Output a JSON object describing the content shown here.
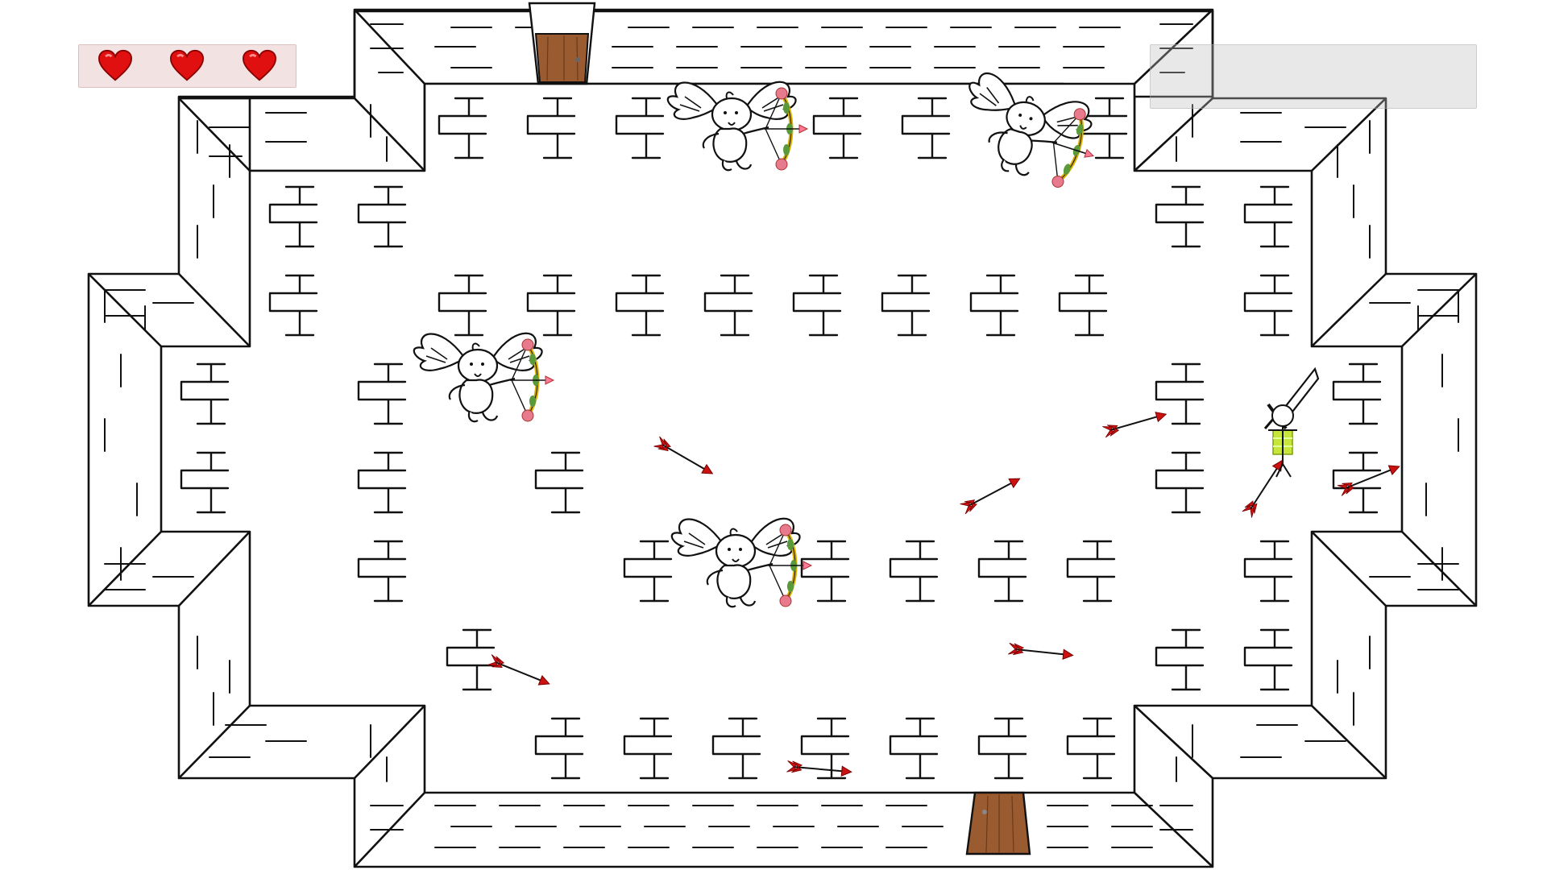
{
  "hud": {
    "hearts": {
      "count": 3,
      "max": 3,
      "color": "#e01010"
    },
    "info_panel": {
      "text": ""
    }
  },
  "scene": {
    "ink_color": "#111111",
    "floor_color": "#ffffff",
    "door_color": "#9a5b30",
    "arrow_color": "#cc1111",
    "sword_icon": "sword-icon",
    "cupid_icon": "cupid-icon",
    "player_icon": "stick-figure-icon"
  }
}
